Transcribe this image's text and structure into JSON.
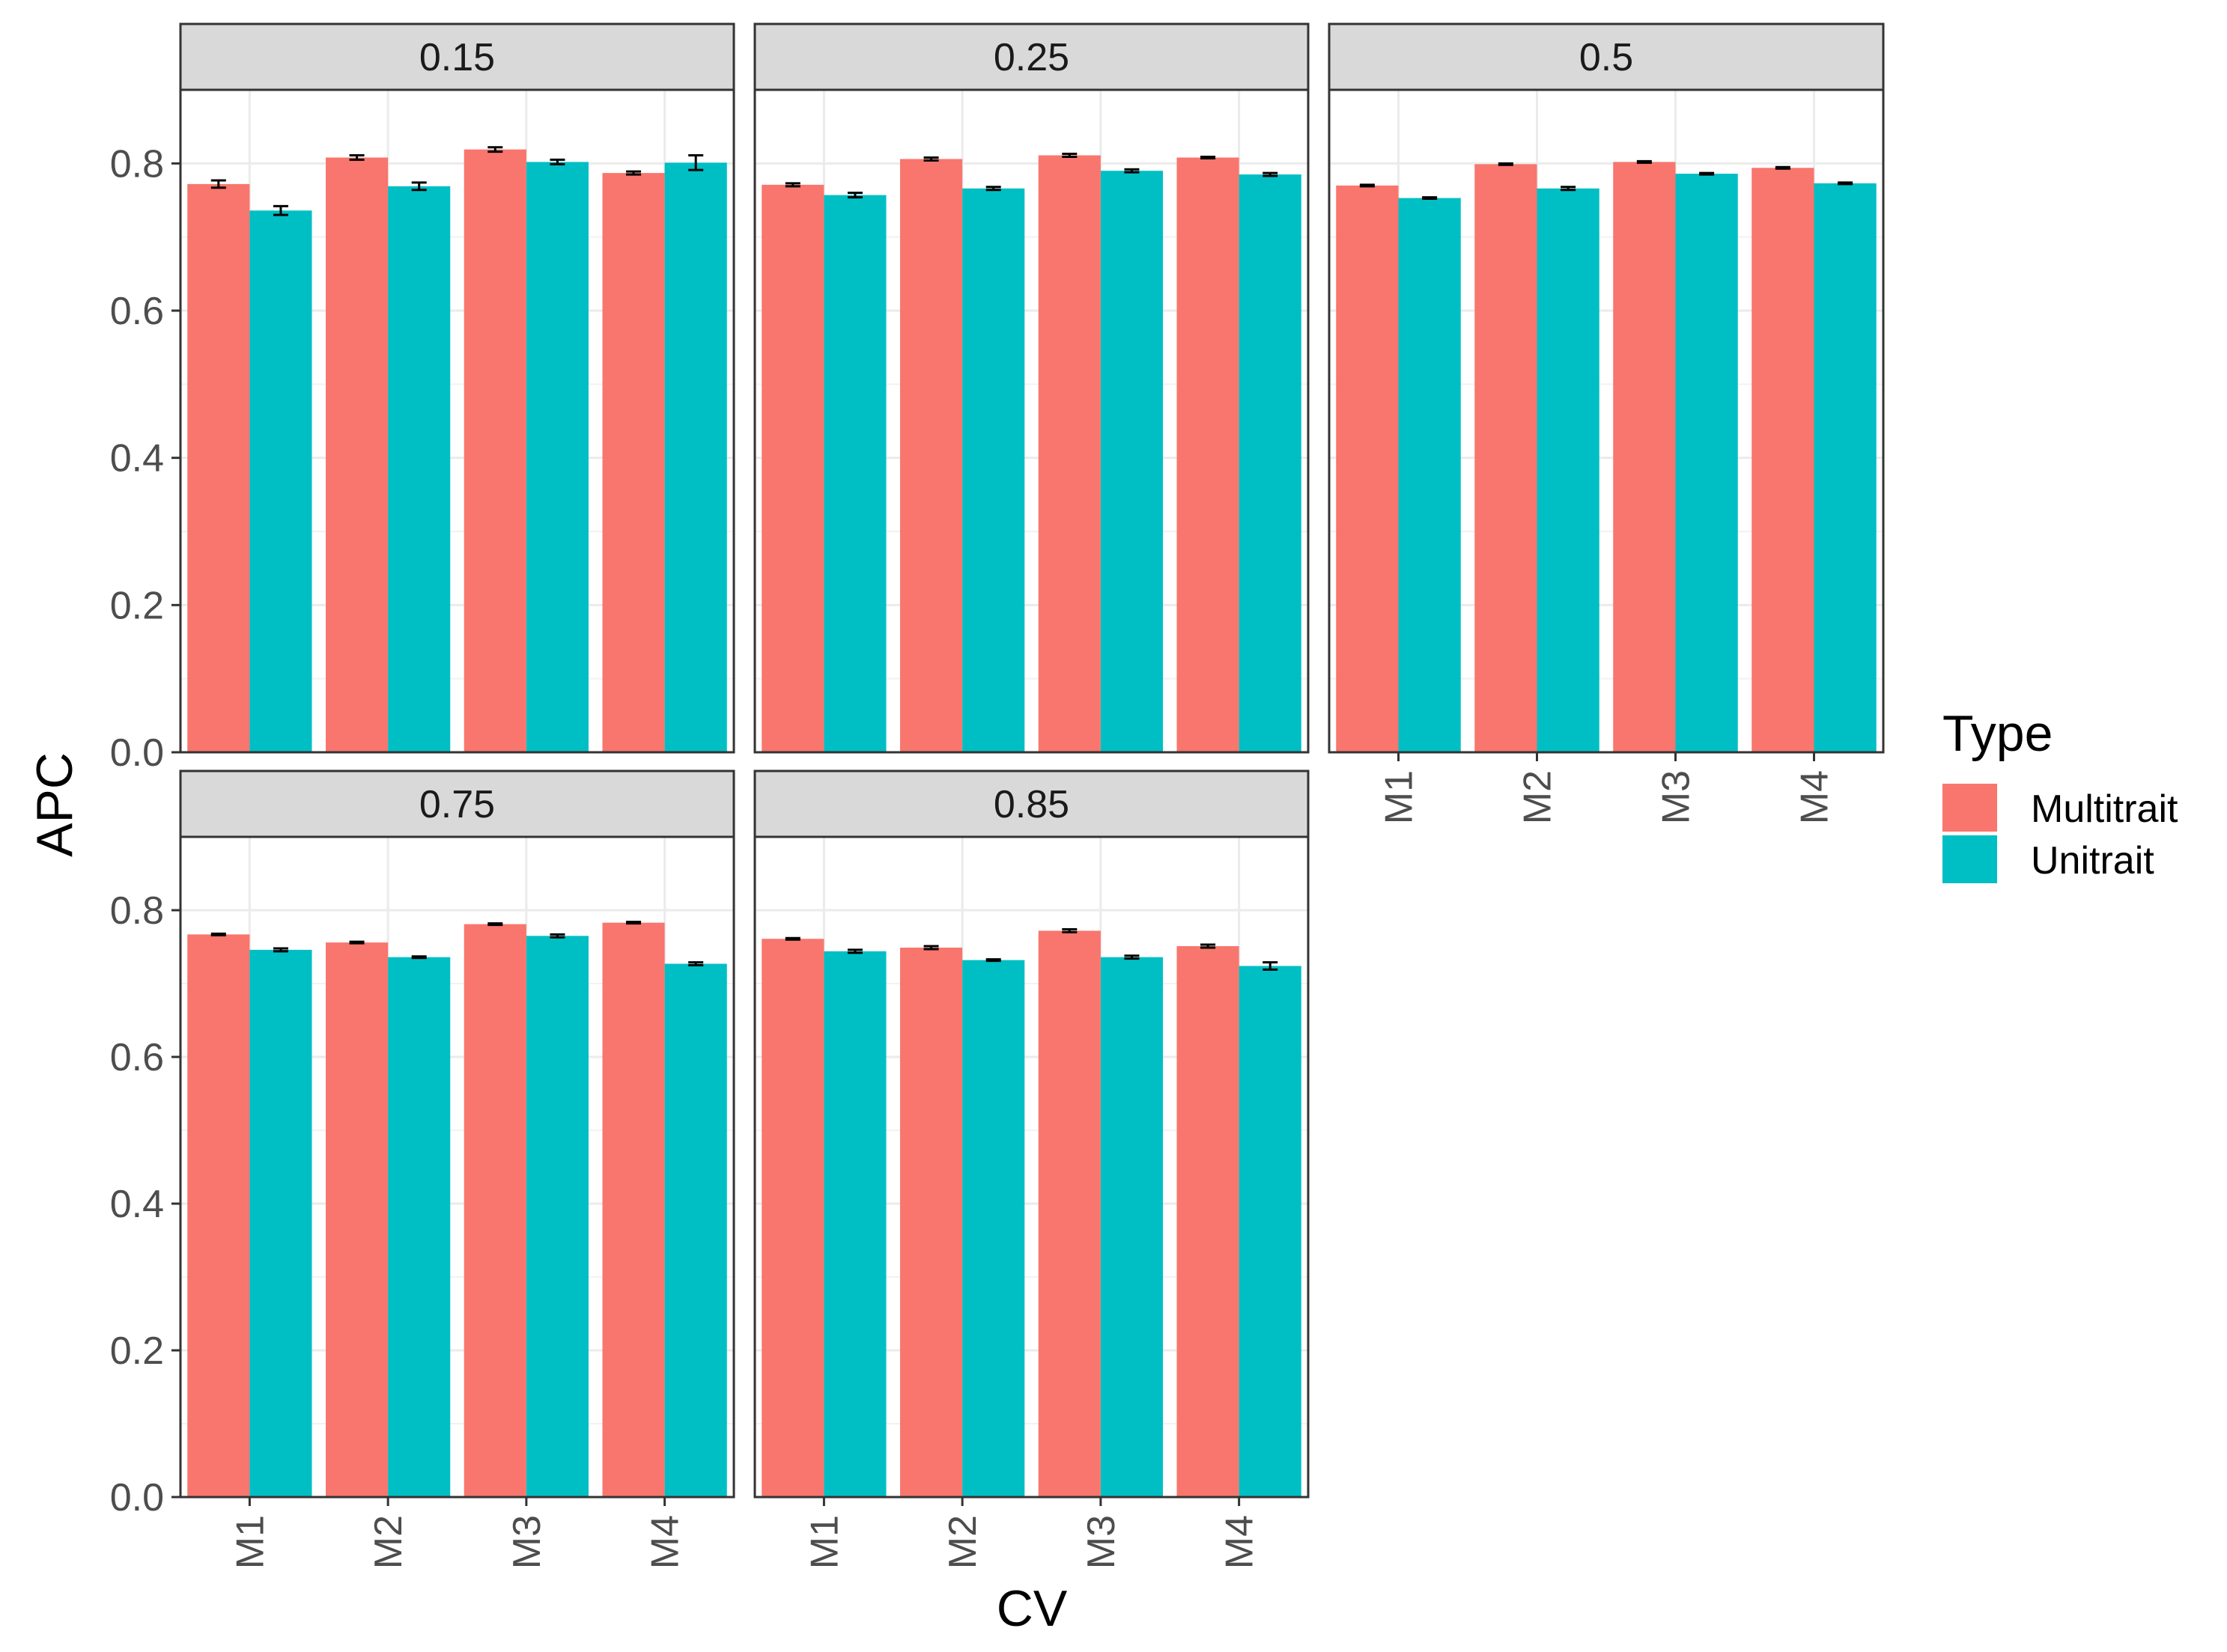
{
  "chart_data": {
    "type": "bar",
    "facet_variable": "",
    "xlabel": "CV",
    "ylabel": "APC",
    "ylim": [
      0,
      0.9
    ],
    "y_ticks": [
      0.0,
      0.2,
      0.4,
      0.6,
      0.8
    ],
    "y_tick_labels": [
      "0.0",
      "0.2",
      "0.4",
      "0.6",
      "0.8"
    ],
    "categories": [
      "M1",
      "M2",
      "M3",
      "M4"
    ],
    "grid": true,
    "legend": {
      "title": "Type",
      "placement": "right",
      "entries": [
        {
          "name": "Multitrait",
          "color": "#F8766D"
        },
        {
          "name": "Unitrait",
          "color": "#00BFC4"
        }
      ]
    },
    "facets": [
      {
        "label": "0.15",
        "series": [
          {
            "name": "Multitrait",
            "values": [
              0.772,
              0.808,
              0.819,
              0.787
            ],
            "errors": [
              0.005,
              0.003,
              0.003,
              0.002
            ]
          },
          {
            "name": "Unitrait",
            "values": [
              0.736,
              0.769,
              0.802,
              0.801
            ],
            "errors": [
              0.006,
              0.005,
              0.003,
              0.01
            ]
          }
        ]
      },
      {
        "label": "0.25",
        "series": [
          {
            "name": "Multitrait",
            "values": [
              0.771,
              0.806,
              0.811,
              0.808
            ],
            "errors": [
              0.002,
              0.002,
              0.002,
              0.001
            ]
          },
          {
            "name": "Unitrait",
            "values": [
              0.757,
              0.766,
              0.79,
              0.785
            ],
            "errors": [
              0.003,
              0.002,
              0.002,
              0.002
            ]
          }
        ]
      },
      {
        "label": "0.5",
        "series": [
          {
            "name": "Multitrait",
            "values": [
              0.77,
              0.799,
              0.802,
              0.794
            ],
            "errors": [
              0.001,
              0.001,
              0.001,
              0.001
            ]
          },
          {
            "name": "Unitrait",
            "values": [
              0.753,
              0.766,
              0.786,
              0.773
            ],
            "errors": [
              0.001,
              0.002,
              0.001,
              0.001
            ]
          }
        ]
      },
      {
        "label": "0.75",
        "series": [
          {
            "name": "Multitrait",
            "values": [
              0.767,
              0.756,
              0.781,
              0.783
            ],
            "errors": [
              0.001,
              0.001,
              0.001,
              0.001
            ]
          },
          {
            "name": "Unitrait",
            "values": [
              0.746,
              0.736,
              0.765,
              0.727
            ],
            "errors": [
              0.002,
              0.001,
              0.002,
              0.002
            ]
          }
        ]
      },
      {
        "label": "0.85",
        "series": [
          {
            "name": "Multitrait",
            "values": [
              0.761,
              0.749,
              0.772,
              0.751
            ],
            "errors": [
              0.001,
              0.002,
              0.002,
              0.002
            ]
          },
          {
            "name": "Unitrait",
            "values": [
              0.744,
              0.732,
              0.736,
              0.724
            ],
            "errors": [
              0.002,
              0.001,
              0.002,
              0.005
            ]
          }
        ]
      }
    ]
  }
}
